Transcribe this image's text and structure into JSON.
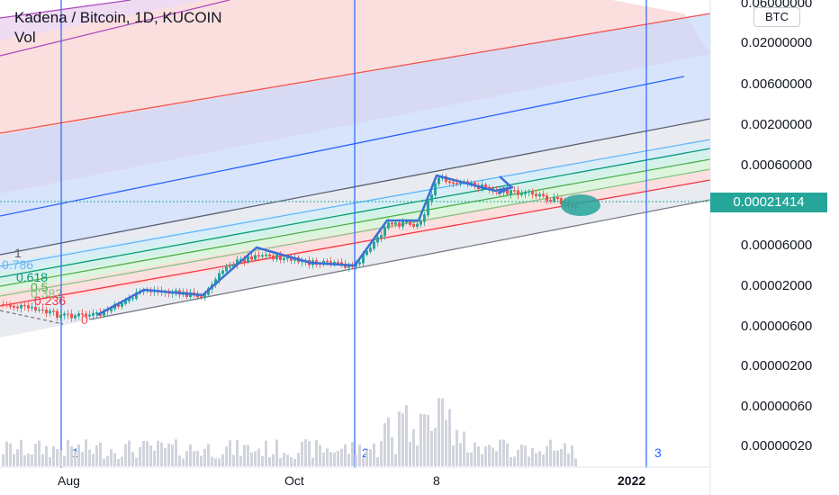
{
  "header": {
    "symbol_line": "Kadena / Bitcoin, 1D, KUCOIN",
    "vol_label": "Vol"
  },
  "currency": "BTC",
  "last_price": "0.00021414",
  "colors": {
    "up": "#26a69a",
    "down": "#ef5350",
    "volume": "#d1d4dc",
    "cycle_lines": "#2962ff",
    "drawing": "#3b6fd6",
    "highlight": "#26a69a"
  },
  "chart_data": {
    "type": "candlestick",
    "title": "Kadena / Bitcoin, 1D, KUCOIN",
    "y_scale": "log",
    "y_ticks": [
      "0.06000000",
      "0.02000000",
      "0.00600000",
      "0.00200000",
      "0.00060000",
      "0.00021414",
      "0.00006000",
      "0.00002000",
      "0.00000600",
      "0.00000200",
      "0.00000060",
      "0.00000020"
    ],
    "x_ticks": [
      "Aug",
      "Oct",
      "8",
      "2022"
    ],
    "fib_channel_levels": [
      "1",
      "0.786",
      "0.618",
      "0.5",
      "0.382",
      "0.236",
      "0"
    ],
    "cycle_labels": [
      "1",
      "2",
      "3"
    ],
    "last_value": 0.00021414,
    "grid": true
  }
}
